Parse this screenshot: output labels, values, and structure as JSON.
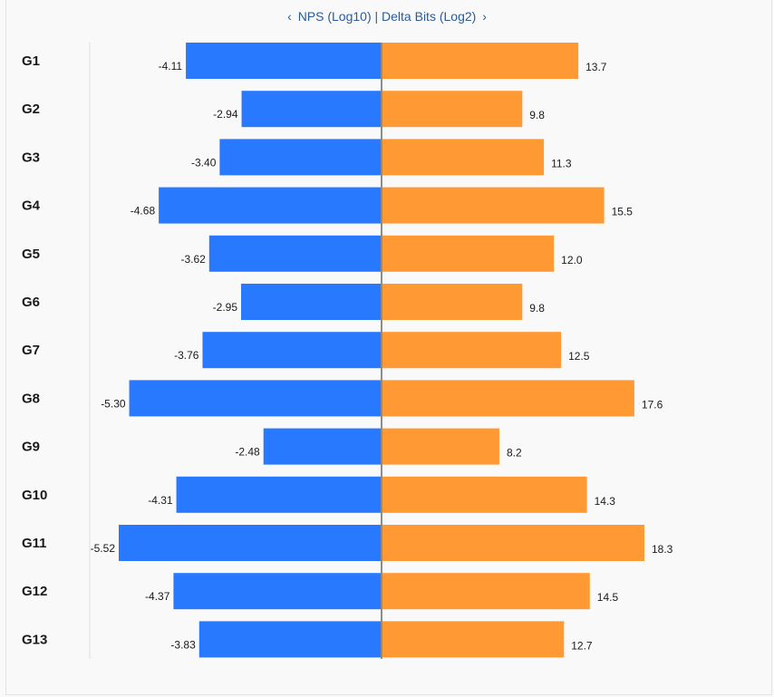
{
  "header": {
    "prev_icon": "‹",
    "title": "NPS (Log10) | Delta Bits (Log2)",
    "next_icon": "›"
  },
  "colors": {
    "left_series": "#2979ff",
    "right_series": "#ff9933",
    "axis": "#8c8c8c",
    "gridline": "#dddddd"
  },
  "chart_data": {
    "type": "bar",
    "orientation": "diverging-horizontal",
    "categories": [
      "G1",
      "G2",
      "G3",
      "G4",
      "G5",
      "G6",
      "G7",
      "G8",
      "G9",
      "G10",
      "G11",
      "G12",
      "G13"
    ],
    "series": [
      {
        "side": "left",
        "values": [
          -4.11,
          -2.94,
          -3.4,
          -4.68,
          -3.62,
          -2.95,
          -3.76,
          -5.3,
          -2.48,
          -4.31,
          -5.52,
          -4.37,
          -3.83
        ],
        "labels": [
          "-4.11",
          "-2.94",
          "-3.40",
          "-4.68",
          "-3.62",
          "-2.95",
          "-3.76",
          "-5.30",
          "-2.48",
          "-4.31",
          "-5.52",
          "-4.37",
          "-3.83"
        ]
      },
      {
        "side": "right",
        "values": [
          13.7,
          9.8,
          11.3,
          15.5,
          12.0,
          9.8,
          12.5,
          17.6,
          8.2,
          14.3,
          18.3,
          14.5,
          12.7
        ],
        "labels": [
          "13.7",
          "9.8",
          "11.3",
          "15.5",
          "12.0",
          "9.8",
          "12.5",
          "17.6",
          "8.2",
          "14.3",
          "18.3",
          "14.5",
          "12.7"
        ]
      }
    ],
    "left_domain": [
      -5.52,
      0
    ],
    "right_domain": [
      0,
      18.3
    ]
  }
}
